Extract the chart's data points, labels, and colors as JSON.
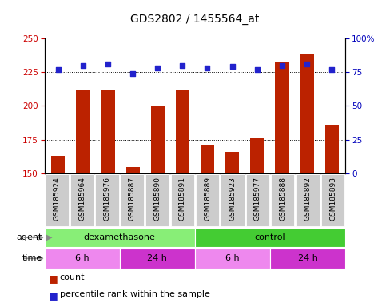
{
  "title": "GDS2802 / 1455564_at",
  "samples": [
    "GSM185924",
    "GSM185964",
    "GSM185976",
    "GSM185887",
    "GSM185890",
    "GSM185891",
    "GSM185889",
    "GSM185923",
    "GSM185977",
    "GSM185888",
    "GSM185892",
    "GSM185893"
  ],
  "count_values": [
    163,
    212,
    212,
    155,
    200,
    212,
    171,
    166,
    176,
    232,
    238,
    186
  ],
  "percentile_values": [
    77,
    80,
    81,
    74,
    78,
    80,
    78,
    79,
    77,
    80,
    81,
    77
  ],
  "ylim_left": [
    150,
    250
  ],
  "ylim_right": [
    0,
    100
  ],
  "yticks_left": [
    150,
    175,
    200,
    225,
    250
  ],
  "yticks_right": [
    0,
    25,
    50,
    75,
    100
  ],
  "bar_color": "#bb2200",
  "dot_color": "#2222cc",
  "bg_color": "#ffffff",
  "agent_groups": [
    {
      "label": "dexamethasone",
      "start": 0,
      "end": 6,
      "color": "#88ee77"
    },
    {
      "label": "control",
      "start": 6,
      "end": 12,
      "color": "#44cc33"
    }
  ],
  "time_groups": [
    {
      "label": "6 h",
      "start": 0,
      "end": 3,
      "color": "#ee88ee"
    },
    {
      "label": "24 h",
      "start": 3,
      "end": 6,
      "color": "#cc33cc"
    },
    {
      "label": "6 h",
      "start": 6,
      "end": 9,
      "color": "#ee88ee"
    },
    {
      "label": "24 h",
      "start": 9,
      "end": 12,
      "color": "#cc33cc"
    }
  ],
  "ylabel_left_color": "#cc0000",
  "ylabel_right_color": "#0000bb",
  "title_fontsize": 10,
  "tick_fontsize": 7.5,
  "sample_fontsize": 6.5,
  "anno_fontsize": 8,
  "legend_fontsize": 8
}
